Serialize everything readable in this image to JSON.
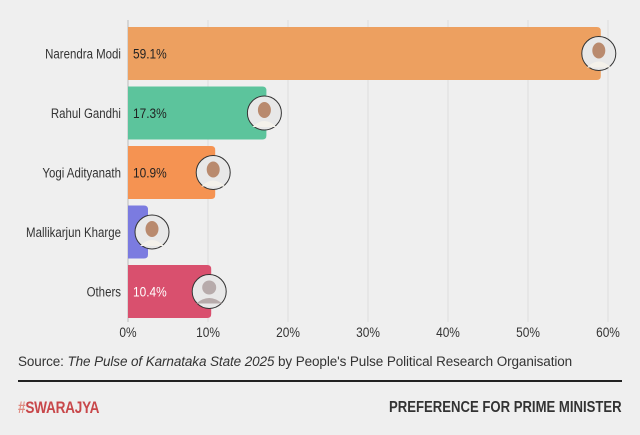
{
  "chart_data": {
    "type": "bar",
    "orientation": "horizontal",
    "categories": [
      "Narendra Modi",
      "Rahul Gandhi",
      "Yogi Adityanath",
      "Mallikarjun Kharge",
      "Others"
    ],
    "values": [
      59.1,
      17.3,
      10.9,
      2.5,
      10.4
    ],
    "data_labels": [
      "59.1%",
      "17.3%",
      "10.9%",
      "",
      "10.4%"
    ],
    "colors": [
      "#eda060",
      "#5cc49c",
      "#f59352",
      "#7b7be0",
      "#d9506e"
    ],
    "label_colors": [
      "#222222",
      "#222222",
      "#222222",
      "#222222",
      "#ffffff"
    ],
    "xlim": [
      0,
      60
    ],
    "xticks": [
      0,
      10,
      20,
      30,
      40,
      50,
      60
    ],
    "xtick_labels": [
      "0%",
      "10%",
      "20%",
      "30%",
      "40%",
      "50%",
      "60%"
    ],
    "grid": "vertical",
    "avatars": [
      "portrait",
      "portrait",
      "portrait",
      "portrait",
      "generic-person-icon"
    ]
  },
  "source": {
    "prefix": "Source: ",
    "title": "The Pulse of Karnataka State 2025",
    "suffix": " by People's Pulse Political Research Organisation"
  },
  "footer": {
    "brand_hash": "#",
    "brand": "SWARAJYA",
    "title": "PREFERENCE FOR PRIME MINISTER"
  }
}
